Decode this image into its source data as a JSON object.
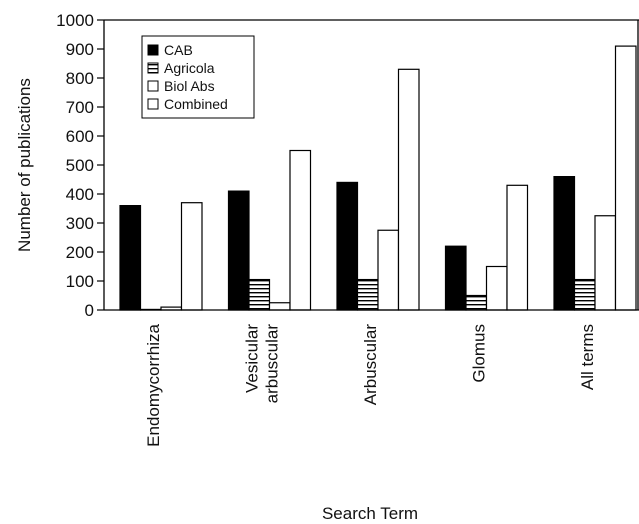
{
  "chart_data": {
    "type": "bar",
    "xlabel": "Search Term",
    "ylabel": "Number of publications",
    "ylim": [
      0,
      1000
    ],
    "yticks": [
      0,
      100,
      200,
      300,
      400,
      500,
      600,
      700,
      800,
      900,
      1000
    ],
    "grid": false,
    "legend_position": "top-left",
    "categories": [
      [
        "Endomycorrhiza"
      ],
      [
        "Vesicular",
        "arbuscular"
      ],
      [
        "Arbuscular"
      ],
      [
        "Glomus"
      ],
      [
        "All terms"
      ]
    ],
    "series": [
      {
        "name": "CAB",
        "fill": "solid-black",
        "values": [
          360,
          410,
          440,
          220,
          460
        ]
      },
      {
        "name": "Agricola",
        "fill": "horizontal-stripes",
        "values": [
          2,
          105,
          105,
          50,
          105
        ]
      },
      {
        "name": "Biol Abs",
        "fill": "white",
        "values": [
          10,
          25,
          275,
          150,
          325
        ]
      },
      {
        "name": "Combined",
        "fill": "white",
        "values": [
          370,
          550,
          830,
          430,
          910
        ]
      }
    ],
    "colors": {
      "bar_stroke": "#000000",
      "solid": "#000000",
      "hollow": "#ffffff"
    }
  }
}
